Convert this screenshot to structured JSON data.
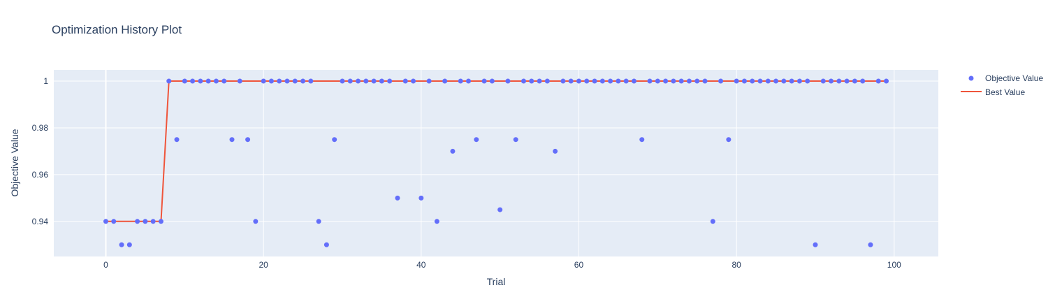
{
  "chart_data": {
    "type": "scatter",
    "title": "Optimization History Plot",
    "xlabel": "Trial",
    "ylabel": "Objective Value",
    "xlim": [
      -6.6,
      105.6
    ],
    "ylim": [
      0.925,
      1.0048
    ],
    "x_ticks": [
      0,
      20,
      40,
      60,
      80,
      100
    ],
    "y_ticks": [
      0.94,
      0.96,
      0.98,
      1
    ],
    "grid": true,
    "legend_position": "top-right",
    "colors": {
      "plot_background": "#E5ECF6",
      "grid": "#ffffff",
      "objective": "#636EFA",
      "best": "#EF553B",
      "text": "#2a3f5f"
    },
    "series": [
      {
        "name": "Objective Value",
        "mode": "markers",
        "x": [
          0,
          1,
          2,
          3,
          4,
          5,
          6,
          7,
          8,
          9,
          10,
          11,
          12,
          13,
          14,
          15,
          16,
          17,
          18,
          19,
          20,
          21,
          22,
          23,
          24,
          25,
          26,
          27,
          28,
          29,
          30,
          31,
          32,
          33,
          34,
          35,
          36,
          37,
          38,
          39,
          40,
          41,
          42,
          43,
          44,
          45,
          46,
          47,
          48,
          49,
          50,
          51,
          52,
          53,
          54,
          55,
          56,
          57,
          58,
          59,
          60,
          61,
          62,
          63,
          64,
          65,
          66,
          67,
          68,
          69,
          70,
          71,
          72,
          73,
          74,
          75,
          76,
          77,
          78,
          79,
          80,
          81,
          82,
          83,
          84,
          85,
          86,
          87,
          88,
          89,
          90,
          91,
          92,
          93,
          94,
          95,
          96,
          97,
          98,
          99
        ],
        "y": [
          0.94,
          0.94,
          0.93,
          0.93,
          0.94,
          0.94,
          0.94,
          0.94,
          1,
          0.975,
          1,
          1,
          1,
          1,
          1,
          1,
          0.975,
          1,
          0.975,
          0.94,
          1,
          1,
          1,
          1,
          1,
          1,
          1,
          0.94,
          0.93,
          0.975,
          1,
          1,
          1,
          1,
          1,
          1,
          1,
          0.95,
          1,
          1,
          0.95,
          1,
          0.94,
          1,
          0.97,
          1,
          1,
          0.975,
          1,
          1,
          0.945,
          1,
          0.975,
          1,
          1,
          1,
          1,
          0.97,
          1,
          1,
          1,
          1,
          1,
          1,
          1,
          1,
          1,
          1,
          0.975,
          1,
          1,
          1,
          1,
          1,
          1,
          1,
          1,
          0.94,
          1,
          0.975,
          1,
          1,
          1,
          1,
          1,
          1,
          1,
          1,
          1,
          1,
          0.93,
          1,
          1,
          1,
          1,
          1,
          1,
          0.93,
          1,
          1
        ]
      },
      {
        "name": "Best Value",
        "mode": "line",
        "x": [
          0,
          1,
          2,
          3,
          4,
          5,
          6,
          7,
          8,
          9,
          10,
          11,
          12,
          13,
          14,
          15,
          16,
          17,
          18,
          19,
          20,
          21,
          22,
          23,
          24,
          25,
          26,
          27,
          28,
          29,
          30,
          31,
          32,
          33,
          34,
          35,
          36,
          37,
          38,
          39,
          40,
          41,
          42,
          43,
          44,
          45,
          46,
          47,
          48,
          49,
          50,
          51,
          52,
          53,
          54,
          55,
          56,
          57,
          58,
          59,
          60,
          61,
          62,
          63,
          64,
          65,
          66,
          67,
          68,
          69,
          70,
          71,
          72,
          73,
          74,
          75,
          76,
          77,
          78,
          79,
          80,
          81,
          82,
          83,
          84,
          85,
          86,
          87,
          88,
          89,
          90,
          91,
          92,
          93,
          94,
          95,
          96,
          97,
          98,
          99
        ],
        "y": [
          0.94,
          0.94,
          0.94,
          0.94,
          0.94,
          0.94,
          0.94,
          0.94,
          1,
          1,
          1,
          1,
          1,
          1,
          1,
          1,
          1,
          1,
          1,
          1,
          1,
          1,
          1,
          1,
          1,
          1,
          1,
          1,
          1,
          1,
          1,
          1,
          1,
          1,
          1,
          1,
          1,
          1,
          1,
          1,
          1,
          1,
          1,
          1,
          1,
          1,
          1,
          1,
          1,
          1,
          1,
          1,
          1,
          1,
          1,
          1,
          1,
          1,
          1,
          1,
          1,
          1,
          1,
          1,
          1,
          1,
          1,
          1,
          1,
          1,
          1,
          1,
          1,
          1,
          1,
          1,
          1,
          1,
          1,
          1,
          1,
          1,
          1,
          1,
          1,
          1,
          1,
          1,
          1,
          1,
          1,
          1,
          1,
          1,
          1,
          1,
          1,
          1,
          1,
          1
        ]
      }
    ]
  }
}
